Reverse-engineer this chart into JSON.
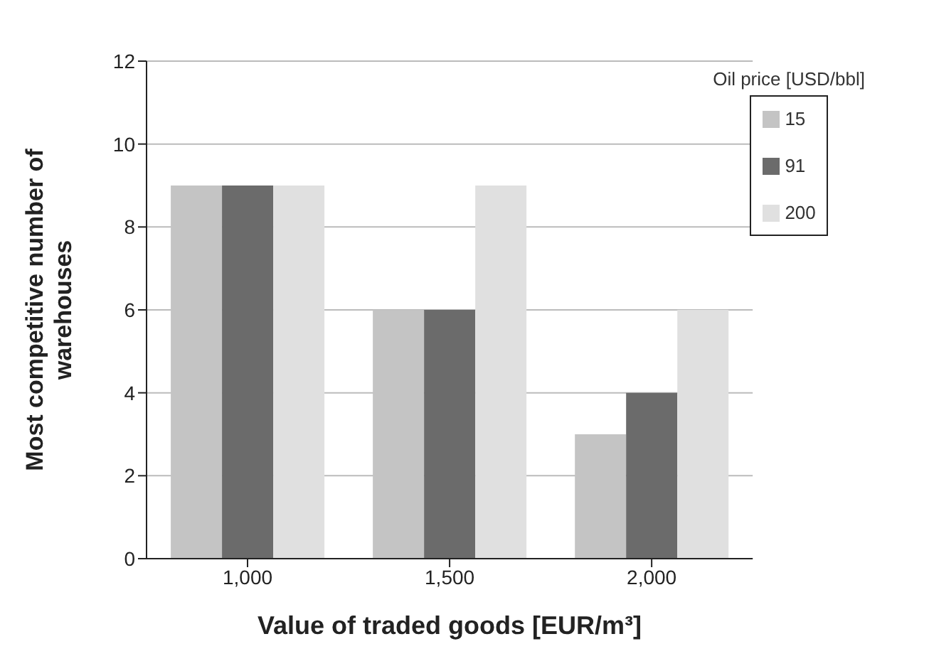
{
  "chart_data": {
    "type": "bar",
    "xlabel": "Value of traded goods [EUR/m³]",
    "ylabel": "Most competitive number of warehouses",
    "legend_title": "Oil price [USD/bbl]",
    "categories": [
      "1,000",
      "1,500",
      "2,000"
    ],
    "series": [
      {
        "name": "15",
        "color": "#c4c4c4",
        "values": [
          9,
          6,
          3
        ]
      },
      {
        "name": "91",
        "color": "#6b6b6b",
        "values": [
          9,
          6,
          4
        ]
      },
      {
        "name": "200",
        "color": "#e0e0e0",
        "values": [
          9,
          9,
          6
        ]
      }
    ],
    "ylim": [
      0,
      12
    ],
    "yticks": [
      0,
      2,
      4,
      6,
      8,
      10,
      12
    ],
    "grid": "y",
    "legend": "top right"
  }
}
